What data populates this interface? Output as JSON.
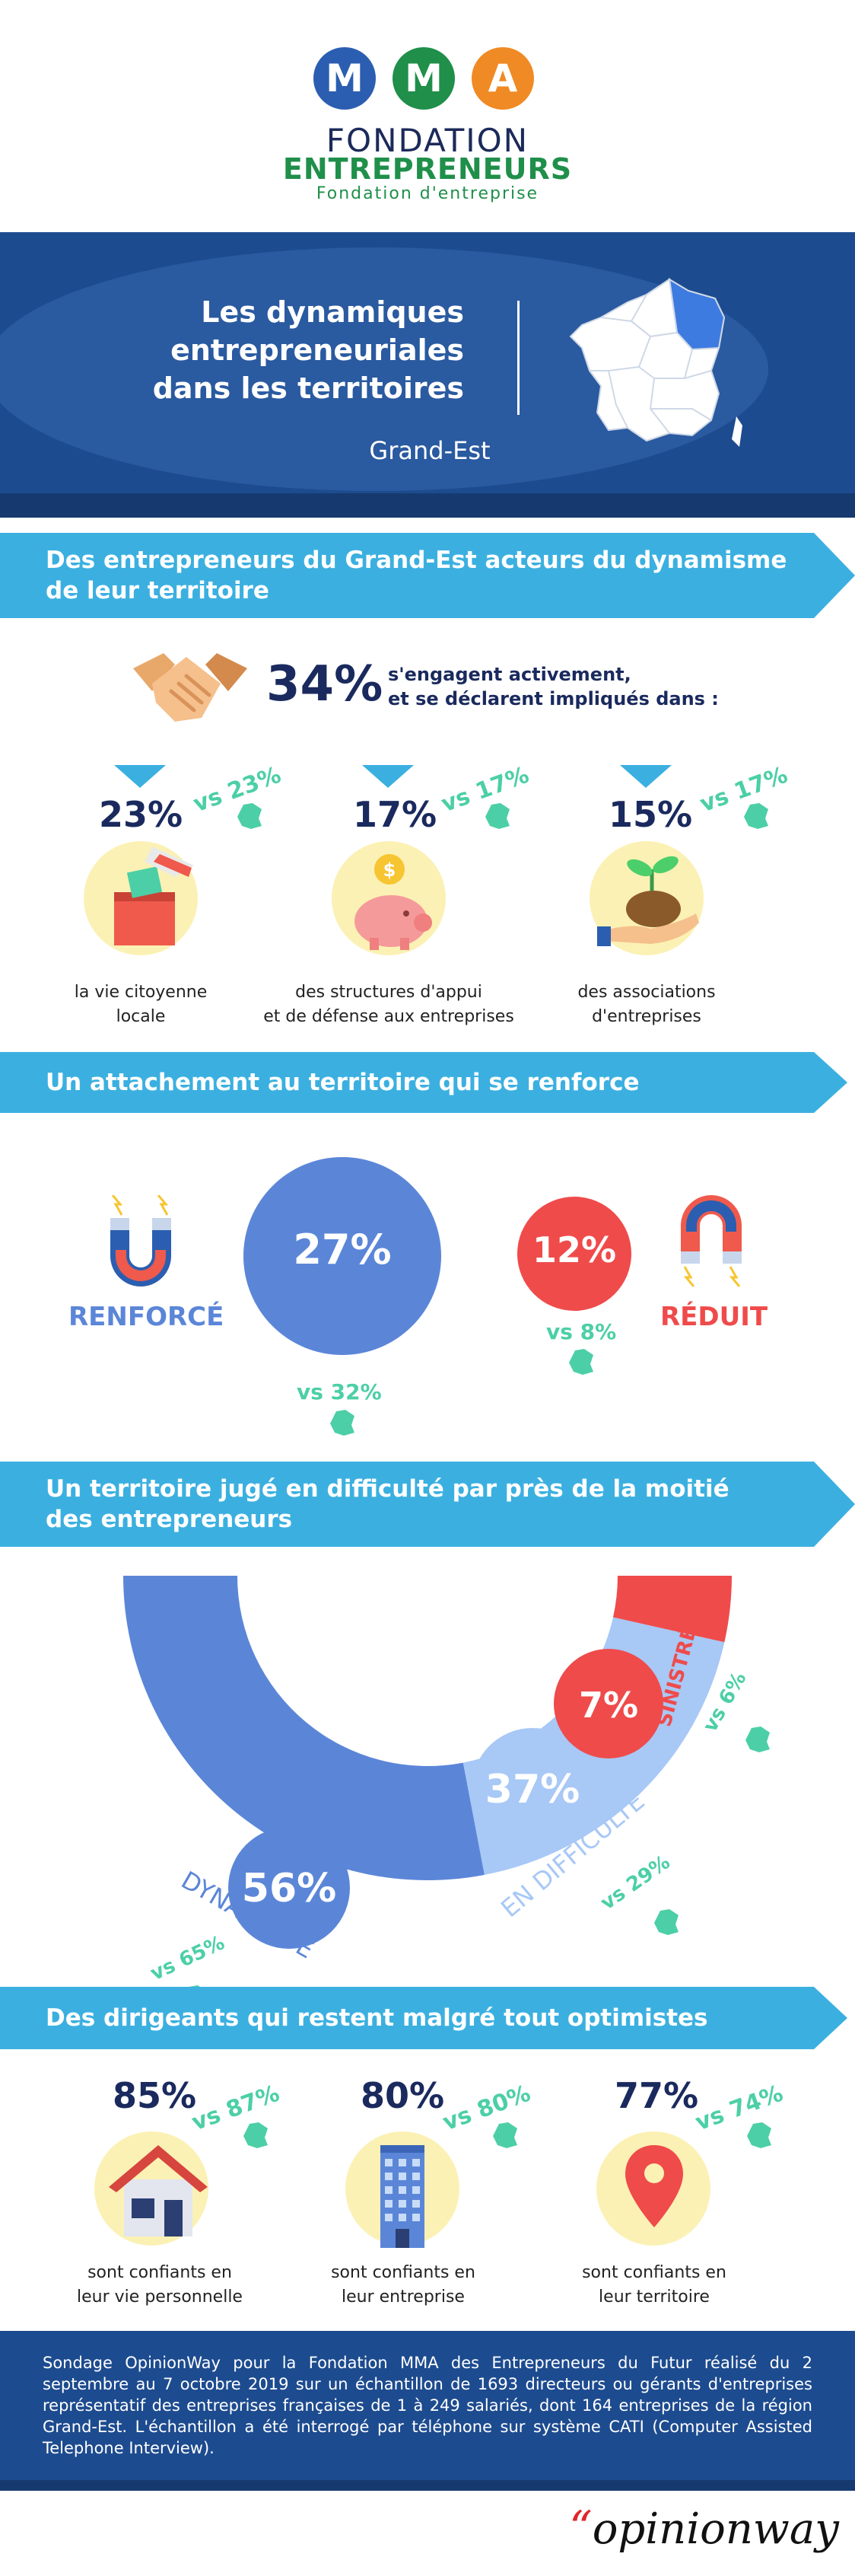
{
  "header": {
    "logo_letters": [
      "M",
      "M",
      "A"
    ],
    "logo_colors": [
      "#2b5eb0",
      "#1f8f4a",
      "#f08a24"
    ],
    "word1": "FONDATION",
    "word2": "ENTREPRENEURS",
    "word3": "Fondation d'entreprise"
  },
  "hero": {
    "title_line1": "Les dynamiques",
    "title_line2": "entrepreneuriales",
    "title_line3": "dans les territoires",
    "region": "Grand-Est"
  },
  "section1": {
    "banner_line1": "Des entrepreneurs du Grand-Est acteurs du dynamisme",
    "banner_line2": "de leur territoire",
    "main_pct": "34%",
    "main_text_line1": "s'engagent activement,",
    "main_text_line2": "et se déclarent impliqués dans :",
    "items": [
      {
        "pct": "23%",
        "vs": "vs 23%",
        "label_line1": "la vie citoyenne",
        "label_line2": "locale"
      },
      {
        "pct": "17%",
        "vs": "vs 17%",
        "label_line1": "des structures d'appui",
        "label_line2": "et de défense aux entreprises"
      },
      {
        "pct": "15%",
        "vs": "vs 17%",
        "label_line1": "des associations",
        "label_line2": "d'entreprises"
      }
    ]
  },
  "section2": {
    "banner": "Un attachement au territoire qui se renforce",
    "renforce_label": "RENFORCÉ",
    "renforce_pct": "27%",
    "renforce_vs": "vs 32%",
    "reduit_label": "RÉDUIT",
    "reduit_pct": "12%",
    "reduit_vs": "vs 8%"
  },
  "section3": {
    "banner_line1": "Un territoire jugé en difficulté par près de la moitié",
    "banner_line2": "des entrepreneurs",
    "chart_data": {
      "type": "pie",
      "categories": [
        "DYNAMIQUE",
        "EN DIFFICULTÉ",
        "SINISTRÉ"
      ],
      "values": [
        56,
        37,
        7
      ],
      "labels": [
        "56%",
        "37%",
        "7%"
      ],
      "comparisons": [
        "vs 65%",
        "vs 29%",
        "vs 6%"
      ],
      "colors": [
        "#5b86d8",
        "#a8c8f6",
        "#ef4b4b"
      ]
    }
  },
  "section4": {
    "banner": "Des dirigeants qui restent malgré tout optimistes",
    "items": [
      {
        "pct": "85%",
        "vs": "vs 87%",
        "label_line1": "sont confiants en",
        "label_line2": "leur vie personnelle"
      },
      {
        "pct": "80%",
        "vs": "vs 80%",
        "label_line1": "sont confiants en",
        "label_line2": "leur entreprise"
      },
      {
        "pct": "77%",
        "vs": "vs 74%",
        "label_line1": "sont confiants en",
        "label_line2": "leur territoire"
      }
    ]
  },
  "footer": {
    "text": "Sondage OpinionWay pour la Fondation MMA des Entrepreneurs du Futur réalisé du 2 septembre au 7 octobre 2019 sur un échantillon de 1693 directeurs ou gérants d'entreprises représentatif des entreprises françaises de 1 à 249 salariés, dont 164 entreprises de la région Grand-Est. L'échantillon a été interrogé par téléphone sur système CATI (Computer Assisted Telephone Interview).",
    "brand": "opinionway",
    "brand_quote": "“"
  }
}
